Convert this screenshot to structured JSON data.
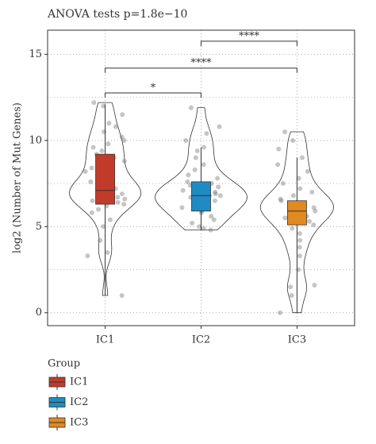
{
  "chart_data": {
    "type": "violin",
    "title": "ANOVA tests p=1.8e−10",
    "y_label": "log2 (Number of Mut Genes)",
    "categories": [
      "IC1",
      "IC2",
      "IC3"
    ],
    "ylim": [
      -0.75,
      16.4
    ],
    "yticks": [
      0,
      5,
      10,
      15
    ],
    "minor_yticks": [
      2.5,
      7.5,
      12.5
    ],
    "grid": true,
    "series": [
      {
        "name": "IC1",
        "color": "#c23b2a",
        "q1": 6.3,
        "median": 7.1,
        "q3": 9.2,
        "whisker_low": 1.0,
        "whisker_high": 12.1,
        "points": [
          1.0,
          3.3,
          3.5,
          4.2,
          5.0,
          5.4,
          5.8,
          6.0,
          6.2,
          6.3,
          6.4,
          6.5,
          6.6,
          6.7,
          6.8,
          6.9,
          7.0,
          7.0,
          7.1,
          7.2,
          7.3,
          7.4,
          7.5,
          7.6,
          7.8,
          8.0,
          8.2,
          8.4,
          8.6,
          8.8,
          9.0,
          9.2,
          9.4,
          9.6,
          9.8,
          10.0,
          10.2,
          10.5,
          10.8,
          11.0,
          11.5,
          12.0,
          12.2
        ]
      },
      {
        "name": "IC2",
        "color": "#1f8bc2",
        "q1": 5.9,
        "median": 6.8,
        "q3": 7.6,
        "whisker_low": 4.8,
        "whisker_high": 9.6,
        "points": [
          4.8,
          4.9,
          5.0,
          5.2,
          5.4,
          5.6,
          5.8,
          5.9,
          6.0,
          6.1,
          6.2,
          6.3,
          6.4,
          6.5,
          6.6,
          6.7,
          6.7,
          6.8,
          6.8,
          6.9,
          7.0,
          7.1,
          7.2,
          7.3,
          7.4,
          7.5,
          7.6,
          7.8,
          8.0,
          8.3,
          8.6,
          9.0,
          9.4,
          9.6,
          10.0,
          10.4,
          10.8,
          11.9
        ]
      },
      {
        "name": "IC3",
        "color": "#e08a1f",
        "q1": 5.1,
        "median": 5.9,
        "q3": 6.5,
        "whisker_low": 0.0,
        "whisker_high": 9.0,
        "points": [
          0.0,
          1.0,
          1.5,
          1.6,
          2.5,
          3.3,
          3.8,
          4.2,
          4.6,
          4.9,
          5.1,
          5.3,
          5.5,
          5.6,
          5.8,
          5.9,
          6.0,
          6.1,
          6.2,
          6.3,
          6.4,
          6.5,
          6.6,
          6.8,
          7.0,
          7.2,
          7.5,
          7.8,
          8.2,
          8.6,
          9.0,
          9.5,
          10.0,
          10.5
        ]
      }
    ],
    "comparisons": [
      {
        "from": "IC1",
        "to": "IC2",
        "y": 12.76,
        "label": "*"
      },
      {
        "from": "IC1",
        "to": "IC3",
        "y": 14.2,
        "label": "****"
      },
      {
        "from": "IC2",
        "to": "IC3",
        "y": 15.76,
        "label": "****"
      }
    ],
    "legend": {
      "title": "Group"
    }
  }
}
